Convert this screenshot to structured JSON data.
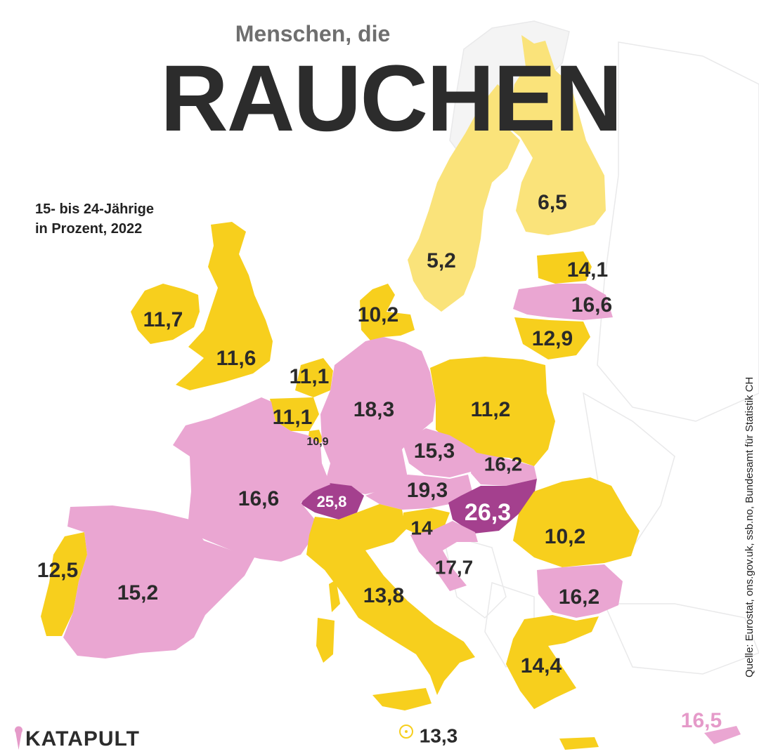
{
  "header": {
    "kicker": "Menschen, die",
    "title": "RAUCHEN",
    "subtitle_line1": "15- bis 24-Jährige",
    "subtitle_line2": "in Prozent, 2022"
  },
  "source": "Quelle: Eurostat, ons.gov.uk, ssb.no, Bundesamt für Statistik CH",
  "brand": "KATAPULT",
  "colors": {
    "low": "#f7cf1d",
    "low_light": "#fae37a",
    "mid": "#eaa6d2",
    "high": "#a4408e",
    "label_dark": "#2a2a2a",
    "label_light": "#ffffff",
    "label_pink": "#e59ac9"
  },
  "map_data": {
    "value_unit": "Prozent",
    "values": [
      {
        "country": "Finnland",
        "value": "6,5",
        "category": "low_light"
      },
      {
        "country": "Schweden",
        "value": "5,2",
        "category": "low_light"
      },
      {
        "country": "Estland",
        "value": "14,1",
        "category": "low"
      },
      {
        "country": "Lettland",
        "value": "16,6",
        "category": "mid"
      },
      {
        "country": "Litauen",
        "value": "12,9",
        "category": "low"
      },
      {
        "country": "Dänemark",
        "value": "10,2",
        "category": "low"
      },
      {
        "country": "Irland",
        "value": "11,7",
        "category": "low"
      },
      {
        "country": "Vereinigtes Königreich",
        "value": "11,6",
        "category": "low"
      },
      {
        "country": "Niederlande",
        "value": "11,1",
        "category": "low"
      },
      {
        "country": "Belgien",
        "value": "11,1",
        "category": "low"
      },
      {
        "country": "Luxemburg",
        "value": "10,9",
        "category": "low"
      },
      {
        "country": "Deutschland",
        "value": "18,3",
        "category": "mid"
      },
      {
        "country": "Polen",
        "value": "11,2",
        "category": "low"
      },
      {
        "country": "Tschechien",
        "value": "15,3",
        "category": "mid"
      },
      {
        "country": "Slowakei",
        "value": "16,2",
        "category": "mid"
      },
      {
        "country": "Österreich",
        "value": "19,3",
        "category": "mid"
      },
      {
        "country": "Ungarn",
        "value": "26,3",
        "category": "high"
      },
      {
        "country": "Schweiz",
        "value": "25,8",
        "category": "high"
      },
      {
        "country": "Frankreich",
        "value": "16,6",
        "category": "mid"
      },
      {
        "country": "Slowenien",
        "value": "14",
        "category": "low"
      },
      {
        "country": "Kroatien",
        "value": "17,7",
        "category": "mid"
      },
      {
        "country": "Rumänien",
        "value": "10,2",
        "category": "low"
      },
      {
        "country": "Bulgarien",
        "value": "16,2",
        "category": "mid"
      },
      {
        "country": "Italien",
        "value": "13,8",
        "category": "low"
      },
      {
        "country": "Portugal",
        "value": "12,5",
        "category": "low"
      },
      {
        "country": "Spanien",
        "value": "15,2",
        "category": "mid"
      },
      {
        "country": "Griechenland",
        "value": "14,4",
        "category": "low"
      },
      {
        "country": "Malta",
        "value": "13,3",
        "category": "low"
      },
      {
        "country": "Zypern",
        "value": "16,5",
        "category": "mid"
      }
    ]
  }
}
